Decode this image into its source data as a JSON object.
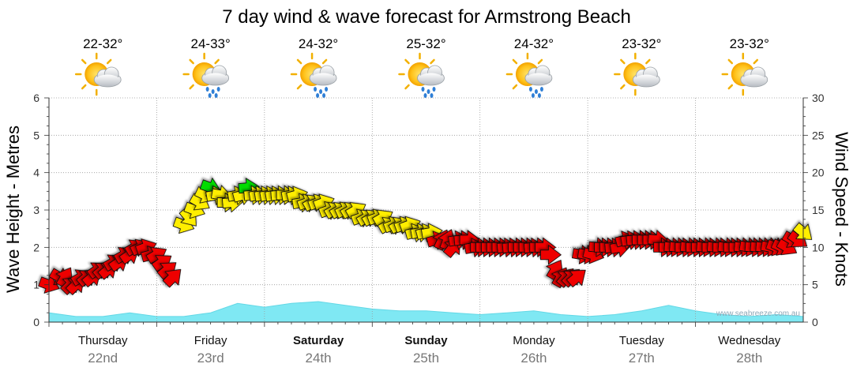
{
  "chart_data": {
    "type": "line",
    "title": "7 day wind & wave forecast for Armstrong Beach",
    "ylabel_left": "Wave Height - Metres",
    "ylabel_right": "Wind Speed - Knots",
    "ylim_left": [
      0,
      6
    ],
    "yticks_left": [
      "0",
      "1",
      "2",
      "3",
      "4",
      "5",
      "6"
    ],
    "ylim_right": [
      0,
      30
    ],
    "yticks_right": [
      "0",
      "5",
      "10",
      "15",
      "20",
      "25",
      "30"
    ],
    "grid": true,
    "watermark": "www.seabreeze.com.au",
    "days": [
      {
        "name": "Thursday",
        "date": "22nd",
        "bold": false,
        "temp": "22-32°",
        "weather": "partly-cloudy-icon"
      },
      {
        "name": "Friday",
        "date": "23rd",
        "bold": false,
        "temp": "24-33°",
        "weather": "showers-icon"
      },
      {
        "name": "Saturday",
        "date": "24th",
        "bold": true,
        "temp": "24-32°",
        "weather": "showers-icon"
      },
      {
        "name": "Sunday",
        "date": "25th",
        "bold": true,
        "temp": "25-32°",
        "weather": "showers-icon"
      },
      {
        "name": "Monday",
        "date": "26th",
        "bold": false,
        "temp": "24-32°",
        "weather": "showers-icon"
      },
      {
        "name": "Tuesday",
        "date": "27th",
        "bold": false,
        "temp": "23-32°",
        "weather": "partly-cloudy-icon"
      },
      {
        "name": "Wednesday",
        "date": "28th",
        "bold": false,
        "temp": "23-32°",
        "weather": "partly-cloudy-icon"
      }
    ],
    "wave_height_m": {
      "x_days": [
        0,
        0.25,
        0.5,
        0.75,
        1.0,
        1.25,
        1.5,
        1.75,
        2.0,
        2.25,
        2.5,
        2.75,
        3.0,
        3.25,
        3.5,
        3.75,
        4.0,
        4.25,
        4.5,
        4.75,
        5.0,
        5.25,
        5.5,
        5.75,
        6.0,
        6.25,
        6.5,
        6.75,
        7.0
      ],
      "values": [
        0.25,
        0.15,
        0.15,
        0.25,
        0.15,
        0.15,
        0.25,
        0.5,
        0.4,
        0.5,
        0.55,
        0.45,
        0.35,
        0.3,
        0.3,
        0.25,
        0.2,
        0.25,
        0.3,
        0.2,
        0.15,
        0.2,
        0.3,
        0.45,
        0.3,
        0.2,
        0.15,
        0.2,
        0.15
      ]
    },
    "wind_knots": {
      "colors": {
        "light": "#00dd00",
        "moderate": "#ffee00",
        "strong": "#ee0000"
      },
      "x_days": [
        0.0,
        0.1,
        0.15,
        0.2,
        0.25,
        0.3,
        0.35,
        0.4,
        0.45,
        0.5,
        0.55,
        0.6,
        0.65,
        0.7,
        0.75,
        0.8,
        0.85,
        0.9,
        0.95,
        1.0,
        1.05,
        1.1,
        1.15,
        1.25,
        1.3,
        1.35,
        1.4,
        1.45,
        1.5,
        1.55,
        1.6,
        1.65,
        1.7,
        1.75,
        1.8,
        1.85,
        1.9,
        1.95,
        2.0,
        2.05,
        2.1,
        2.15,
        2.2,
        2.25,
        2.3,
        2.35,
        2.4,
        2.45,
        2.5,
        2.55,
        2.6,
        2.65,
        2.7,
        2.75,
        2.8,
        2.85,
        2.9,
        2.95,
        3.0,
        3.05,
        3.1,
        3.15,
        3.2,
        3.25,
        3.3,
        3.35,
        3.4,
        3.45,
        3.5,
        3.55,
        3.6,
        3.65,
        3.7,
        3.75,
        3.8,
        3.85,
        3.9,
        3.95,
        4.0,
        4.05,
        4.1,
        4.15,
        4.2,
        4.25,
        4.3,
        4.35,
        4.4,
        4.45,
        4.5,
        4.55,
        4.6,
        4.65,
        4.7,
        4.75,
        4.8,
        4.85,
        4.9,
        4.95,
        5.0,
        5.05,
        5.1,
        5.15,
        5.2,
        5.25,
        5.3,
        5.35,
        5.4,
        5.45,
        5.5,
        5.55,
        5.6,
        5.65,
        5.7,
        5.75,
        5.8,
        5.85,
        5.9,
        5.95,
        6.0,
        6.05,
        6.1,
        6.15,
        6.2,
        6.25,
        6.3,
        6.35,
        6.4,
        6.45,
        6.5,
        6.55,
        6.6,
        6.65,
        6.7,
        6.75,
        6.8,
        6.85,
        6.9,
        6.95,
        7.0
      ],
      "values": [
        5,
        6,
        6,
        5,
        5,
        6,
        6,
        6,
        7,
        7,
        7,
        8,
        8,
        9,
        9,
        10,
        10,
        10,
        9,
        9,
        8,
        7,
        6,
        13,
        14,
        15,
        16,
        17,
        18,
        17,
        17,
        16,
        16,
        17,
        17,
        18,
        17,
        17,
        17,
        17,
        17,
        17,
        17,
        17,
        17,
        16,
        16,
        16,
        16,
        16,
        15,
        15,
        15,
        15,
        15,
        15,
        14,
        14,
        14,
        14,
        14,
        13,
        13,
        13,
        13,
        13,
        12,
        12,
        12,
        12,
        11,
        11,
        11,
        10,
        11,
        11,
        11,
        10,
        10,
        10,
        10,
        10,
        10,
        10,
        10,
        10,
        10,
        10,
        10,
        10,
        10,
        9,
        7,
        6,
        6,
        6,
        6,
        9,
        9,
        9,
        10,
        10,
        10,
        10,
        10,
        11,
        11,
        11,
        11,
        11,
        11,
        11,
        10,
        10,
        10,
        10,
        10,
        10,
        10,
        10,
        10,
        10,
        10,
        10,
        10,
        10,
        10,
        10,
        10,
        10,
        10,
        10,
        10,
        10,
        10,
        10,
        11,
        11,
        12
      ],
      "directions_deg": [
        200,
        210,
        120,
        135,
        135,
        150,
        140,
        140,
        145,
        140,
        140,
        150,
        145,
        150,
        145,
        150,
        155,
        160,
        165,
        150,
        145,
        140,
        135,
        200,
        230,
        200,
        210,
        205,
        200,
        170,
        190,
        180,
        175,
        170,
        165,
        175,
        175,
        170,
        170,
        170,
        170,
        175,
        180,
        170,
        165,
        170,
        160,
        150,
        160,
        160,
        160,
        150,
        150,
        155,
        150,
        150,
        160,
        150,
        150,
        160,
        150,
        150,
        160,
        150,
        160,
        160,
        165,
        170,
        165,
        170,
        165,
        115,
        110,
        130,
        170,
        175,
        180,
        170,
        180,
        180,
        180,
        180,
        180,
        175,
        175,
        180,
        180,
        180,
        175,
        180,
        180,
        180,
        120,
        120,
        130,
        135,
        140,
        190,
        190,
        195,
        185,
        180,
        180,
        175,
        170,
        165,
        170,
        175,
        180,
        180,
        180,
        185,
        180,
        180,
        185,
        185,
        180,
        185,
        180,
        180,
        185,
        180,
        185,
        180,
        185,
        180,
        180,
        185,
        190,
        185,
        185,
        185,
        190,
        200,
        205,
        210,
        210,
        215,
        220
      ]
    }
  }
}
